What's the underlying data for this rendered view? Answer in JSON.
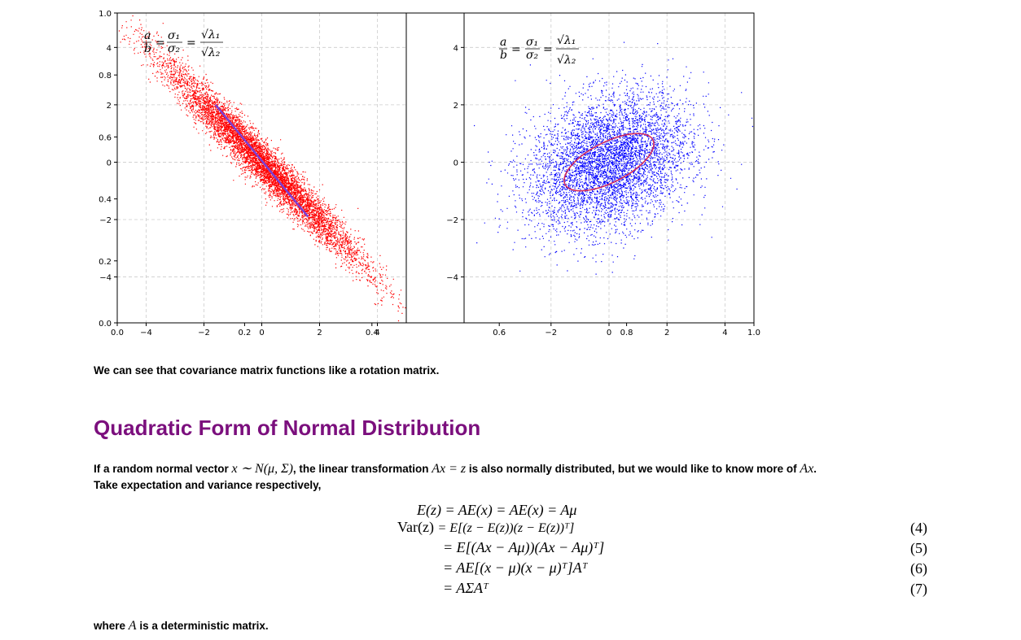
{
  "chart_data": [
    {
      "type": "scatter",
      "title": "",
      "annotation": "a/b = σ1/σ2 = √λ1/√λ2",
      "xlim": [
        -5,
        5
      ],
      "ylim": [
        -5.6,
        5.2
      ],
      "x_ticks": [
        "−4",
        "−2",
        "0",
        "2",
        "4"
      ],
      "y_ticks": [
        "4",
        "2",
        "0",
        "−2",
        "−4"
      ],
      "overlay_ticks_x": [
        "0.0",
        "0.2",
        "0.4"
      ],
      "overlay_ticks_y": [
        "1.0",
        "0.8",
        "0.6",
        "0.4",
        "0.2",
        "0.0"
      ],
      "grid": true,
      "series": [
        {
          "color": "#ff0000",
          "points": 8000,
          "covariance": [
            [
              3.0,
              -3.0
            ],
            [
              -3.0,
              3.16
            ]
          ]
        }
      ],
      "principal_axis": {
        "color": "#7a3fd6",
        "from": [
          -1.6,
          2.0
        ],
        "to": [
          1.6,
          -1.9
        ]
      }
    },
    {
      "type": "scatter",
      "title": "",
      "annotation": "a/b = σ1/σ2 = √λ1/√λ2",
      "xlim": [
        -5,
        5
      ],
      "ylim": [
        -5.6,
        5.2
      ],
      "x_ticks": [
        "−2",
        "0",
        "2",
        "4"
      ],
      "y_ticks": [
        "4",
        "2",
        "0",
        "−2",
        "−4"
      ],
      "overlay_ticks_x": [
        "0.6",
        "0.8",
        "1.0"
      ],
      "grid": true,
      "series": [
        {
          "color": "#0000ff",
          "points": 9000,
          "covariance": [
            [
              1.9,
              0.45
            ],
            [
              0.45,
              1.4
            ]
          ]
        }
      ],
      "ellipse": {
        "color": "#d62e5c",
        "center": [
          0,
          0
        ],
        "rx": 1.7,
        "ry": 0.7,
        "angle_deg": 27
      }
    }
  ],
  "text": {
    "p1": "We can see that covariance matrix functions like a rotation matrix.",
    "heading": "Quadratic Form of Normal Distribution",
    "p2_a": "If a random normal vector ",
    "p2_b": ", the linear transformation ",
    "p2_c": " is also normally distributed, but we would like to know more of ",
    "p2_d": "Take expectation and variance respectively,",
    "p3_a": "where ",
    "p3_b": " is a deterministic matrix."
  },
  "math": {
    "x_sim": "x ∼ N(μ, Σ)",
    "Ax_eq_z": "Ax = z",
    "Ax": "Ax",
    "A": "A",
    "eq0": "E(z) = AE(x) = AE(x) = Aμ",
    "eq1_lhs": "Var(z)",
    "eq1_rhs": "= E[(z − E(z))(z − E(z))ᵀ]",
    "eq2_rhs": "= E[(Ax − Aμ))(Ax − Aμ)ᵀ]",
    "eq3_rhs": "= AE[(x − μ)(x − μ)ᵀ]Aᵀ",
    "eq4_rhs": "= AΣAᵀ",
    "n4": "(4)",
    "n5": "(5)",
    "n6": "(6)",
    "n7": "(7)"
  }
}
